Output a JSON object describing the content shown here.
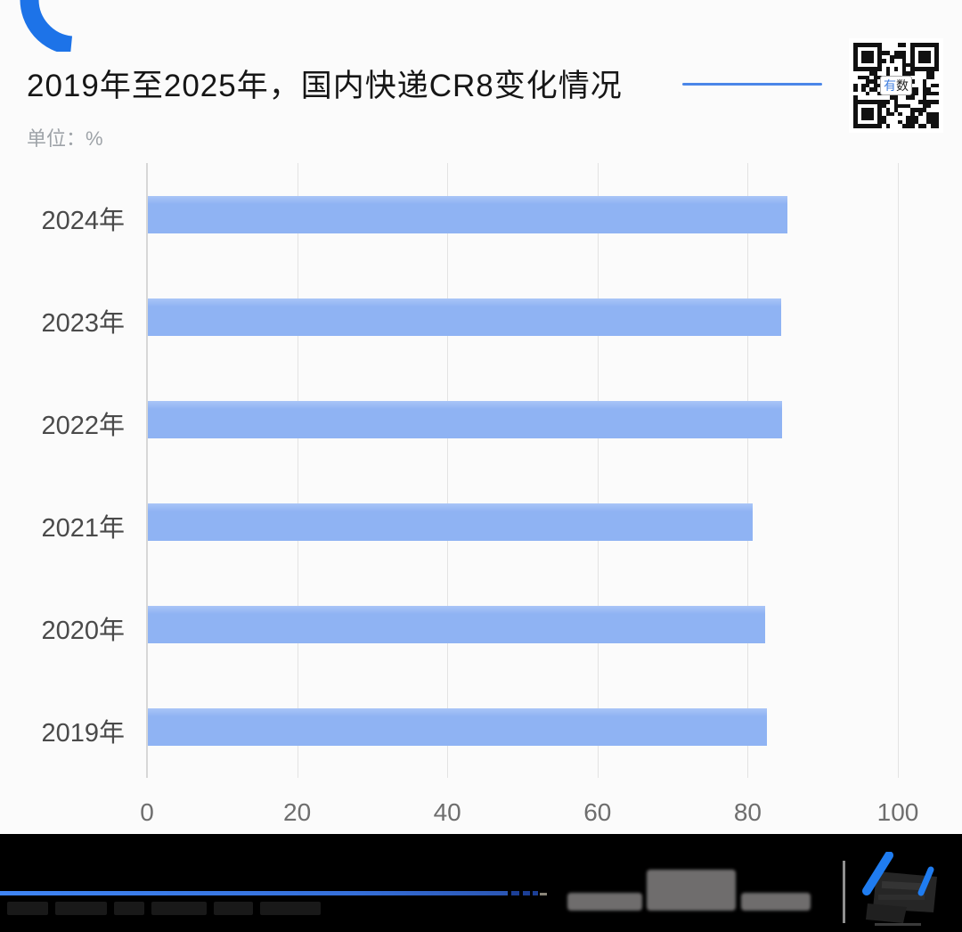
{
  "header": {
    "title": "2019年至2025年，国内快递CR8变化情况",
    "unit_label": "单位：%",
    "qr_center_char_1": "有",
    "qr_center_char_2": "数"
  },
  "chart_data": {
    "type": "bar",
    "orientation": "horizontal",
    "title": "2019年至2025年，国内快递CR8变化情况",
    "unit": "%",
    "categories": [
      "2024年",
      "2023年",
      "2022年",
      "2021年",
      "2020年",
      "2019年"
    ],
    "values": [
      85.2,
      84.3,
      84.5,
      80.5,
      82.2,
      82.5
    ],
    "xlabel": "",
    "ylabel": "",
    "xlim": [
      0,
      100
    ],
    "x_ticks": [
      0,
      20,
      40,
      60,
      80,
      100
    ],
    "grid": true,
    "legend": false,
    "bar_color": "#8fb3f3"
  },
  "colors": {
    "accent_blue": "#1d73e8",
    "title_underline": "#4a86e8",
    "bar": "#8fb3f3",
    "gridline": "#e3e3e3",
    "footer_background": "#000000",
    "footer_line_blue": "#3f85f4"
  }
}
